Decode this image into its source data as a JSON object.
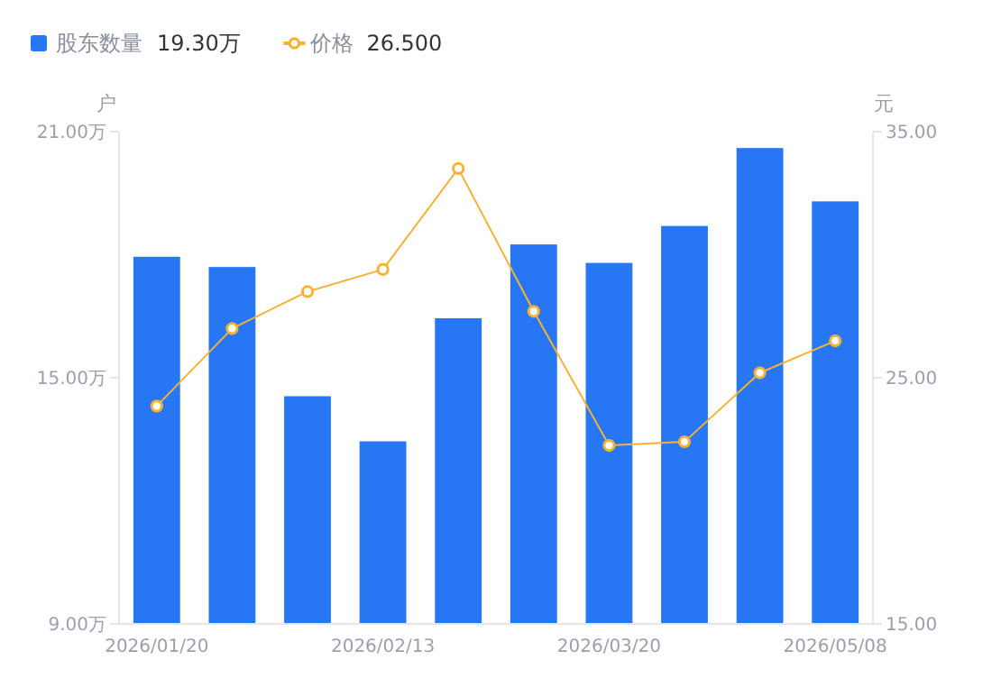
{
  "chart_data": {
    "type": "bar",
    "categories": [
      "2026/01/20",
      null,
      null,
      "2026/02/13",
      null,
      null,
      "2026/03/20",
      null,
      null,
      "2026/05/08"
    ],
    "series": [
      {
        "name": "股东数量",
        "color": "#2777f5",
        "values": [
          17.95,
          17.7,
          14.55,
          13.45,
          16.45,
          18.25,
          17.8,
          18.7,
          20.6,
          19.3
        ]
      },
      {
        "name": "价格",
        "type": "line",
        "axis": "y2",
        "color": "#f7b236",
        "values": [
          23.85,
          27.0,
          28.5,
          29.4,
          33.5,
          27.7,
          22.25,
          22.4,
          25.2,
          26.5
        ]
      }
    ],
    "ylabel": "户",
    "y2label": "元",
    "ylim": [
      9,
      21
    ],
    "yticks": [
      {
        "value": 9,
        "label": "9.00万"
      },
      {
        "value": 15,
        "label": "15.00万"
      },
      {
        "value": 21,
        "label": "21.00万"
      }
    ],
    "y2lim": [
      15,
      35
    ],
    "y2ticks": [
      {
        "value": 15,
        "label": "15.00"
      },
      {
        "value": 25,
        "label": "25.00"
      },
      {
        "value": 35,
        "label": "35.00"
      }
    ],
    "annotations": [
      "19.30万",
      "26.500"
    ],
    "legend": "top left",
    "grid": false,
    "marker": "circle",
    "line_style": "solid"
  }
}
